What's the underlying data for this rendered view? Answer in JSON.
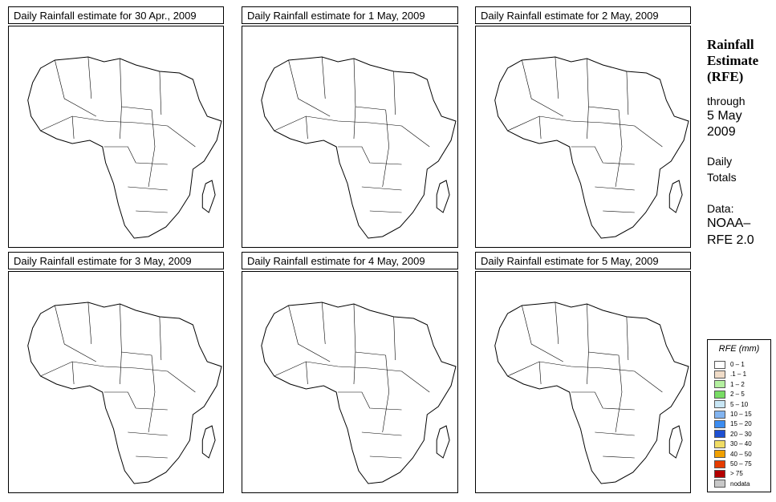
{
  "panels": [
    {
      "title": "Daily Rainfall estimate for  30 Apr., 2009"
    },
    {
      "title": "Daily Rainfall estimate for  1 May, 2009"
    },
    {
      "title": "Daily Rainfall estimate for  2 May, 2009"
    },
    {
      "title": "Daily Rainfall estimate for  3 May, 2009"
    },
    {
      "title": "Daily Rainfall estimate for  4 May, 2009"
    },
    {
      "title": "Daily Rainfall estimate for  5 May, 2009"
    }
  ],
  "side": {
    "title_line1": "Rainfall",
    "title_line2": "Estimate",
    "title_line3": "(RFE)",
    "through": "through",
    "date_line1": "5 May",
    "date_line2": "2009",
    "daily": "Daily",
    "totals": "Totals",
    "data_label": "Data:",
    "source_line1": "NOAA–",
    "source_line2": "RFE 2.0"
  },
  "legend": {
    "title": "RFE (mm)",
    "items": [
      {
        "label": "0 – 1",
        "color": "#ffffff"
      },
      {
        "label": ".1 – 1",
        "color": "#f0dcc8"
      },
      {
        "label": "1 – 2",
        "color": "#b4f0a0"
      },
      {
        "label": "2 – 5",
        "color": "#78dc64"
      },
      {
        "label": "5 – 10",
        "color": "#c8e6f5"
      },
      {
        "label": "10 – 15",
        "color": "#82b4f0"
      },
      {
        "label": "15 – 20",
        "color": "#3c8cf0"
      },
      {
        "label": "20 – 30",
        "color": "#1e50d2"
      },
      {
        "label": "30 – 40",
        "color": "#f0dc64"
      },
      {
        "label": "40 – 50",
        "color": "#f0a000"
      },
      {
        "label": "50 – 75",
        "color": "#e63c00"
      },
      {
        "label": "> 75",
        "color": "#b40000"
      },
      {
        "label": "nodata",
        "color": "#c8c8c8"
      }
    ]
  }
}
